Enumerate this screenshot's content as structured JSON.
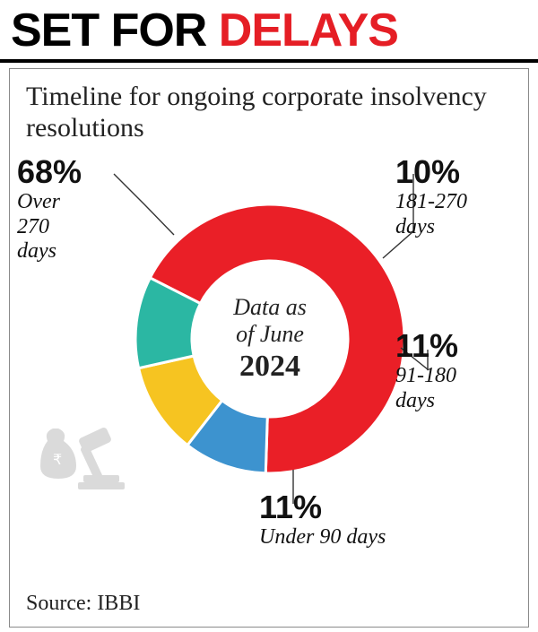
{
  "headline": {
    "part1": "SET FOR ",
    "part2": "DELAYS",
    "fontsize": 52
  },
  "subhead": "Timeline for ongoing corporate insolvency resolutions",
  "center": {
    "line1": "Data as",
    "line2": "of June",
    "year": "2024"
  },
  "source": "Source: IBBI",
  "chart": {
    "type": "donut",
    "inner_radius_ratio": 0.58,
    "background_color": "#ffffff",
    "stroke_color": "#ffffff",
    "stroke_width": 3,
    "slices": [
      {
        "key": "over270",
        "value": 68,
        "color": "#ea1f27",
        "pct_label": "68%",
        "desc": "Over 270 days"
      },
      {
        "key": "d181_270",
        "value": 10,
        "color": "#3d93cf",
        "pct_label": "10%",
        "desc": "181-270 days"
      },
      {
        "key": "d91_180",
        "value": 11,
        "color": "#f6c421",
        "pct_label": "11%",
        "desc": "91-180 days"
      },
      {
        "key": "under90",
        "value": 11,
        "color": "#2bb7a3",
        "pct_label": "11%",
        "desc": "Under 90 days"
      }
    ],
    "start_angle_deg": -153
  },
  "callout_fonts": {
    "pct_size": 36,
    "label_size": 24
  },
  "colors": {
    "headline_black": "#000000",
    "headline_red": "#e51e25",
    "text": "#222222",
    "frame_border": "#8a8a8a",
    "rule": "#000000",
    "deco_gray": "#bdbdbd"
  }
}
